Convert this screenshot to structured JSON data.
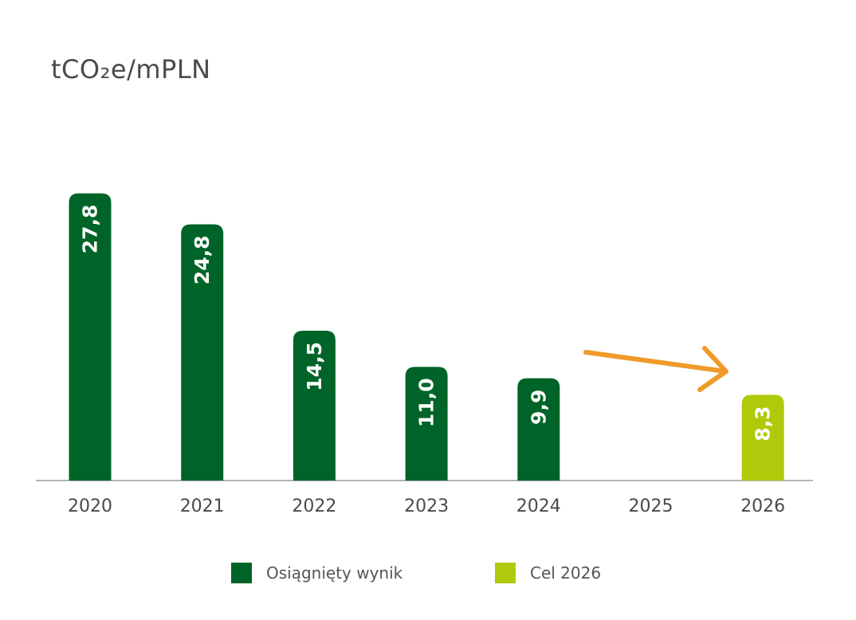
{
  "unit": "tCO₂e/mPLN",
  "colors": {
    "achieved": "#006428",
    "target": "#afca0b",
    "arrow": "#f09a2a",
    "axis": "#9a9a9a",
    "tick_text": "#4a4a4a"
  },
  "chart_data": {
    "type": "bar",
    "categories": [
      "2020",
      "2021",
      "2022",
      "2023",
      "2024",
      "2025",
      "2026"
    ],
    "series": [
      {
        "name": "Osiągnięty wynik",
        "values": [
          27.8,
          24.8,
          14.5,
          11.0,
          9.9,
          null,
          null
        ],
        "labels": [
          "27,8",
          "24,8",
          "14,5",
          "11,0",
          "9,9",
          "",
          ""
        ]
      },
      {
        "name": "Cel 2026",
        "values": [
          null,
          null,
          null,
          null,
          null,
          null,
          8.3
        ],
        "labels": [
          "",
          "",
          "",
          "",
          "",
          "",
          "8,3"
        ]
      }
    ],
    "legend": {
      "placement": "bottom",
      "entries": [
        "Osiągnięty wynik",
        "Cel 2026"
      ]
    },
    "grid": false,
    "ylim": [
      0,
      28
    ]
  }
}
